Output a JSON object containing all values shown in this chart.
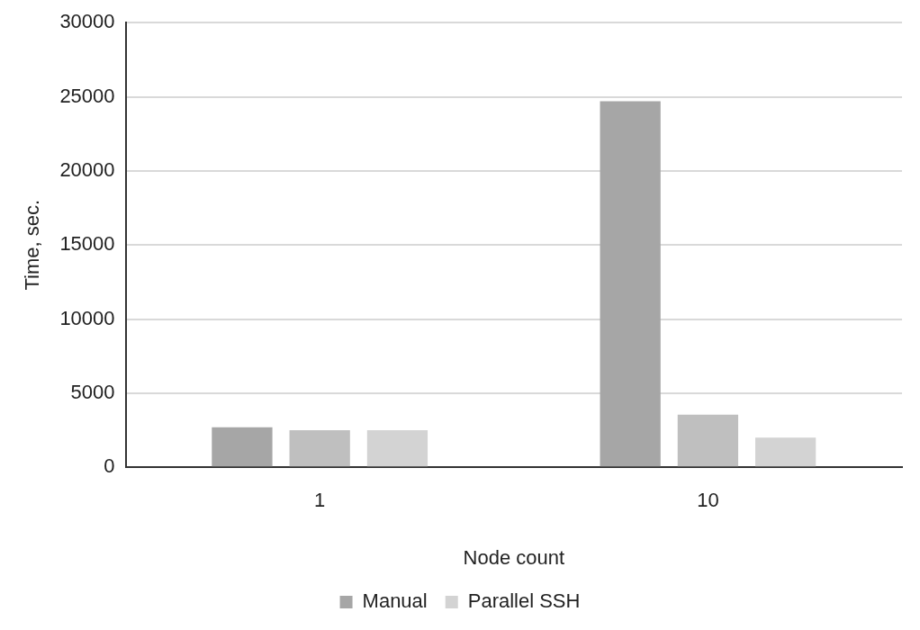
{
  "chart_data": {
    "type": "bar",
    "xlabel": "Node count",
    "ylabel": "Time, sec.",
    "categories": [
      "1",
      "10"
    ],
    "series": [
      {
        "name": "Manual",
        "color": "#a6a6a6",
        "values": [
          2700,
          24700
        ]
      },
      {
        "color": "#bfbfbf",
        "values": [
          2500,
          3550
        ]
      },
      {
        "name": "Parallel SSH",
        "color": "#d3d3d3",
        "values": [
          2500,
          2000
        ]
      }
    ],
    "ylim": [
      0,
      30000
    ],
    "yticks": [
      0,
      5000,
      10000,
      15000,
      20000,
      25000,
      30000
    ],
    "grid": "y",
    "legend": "bottom"
  }
}
